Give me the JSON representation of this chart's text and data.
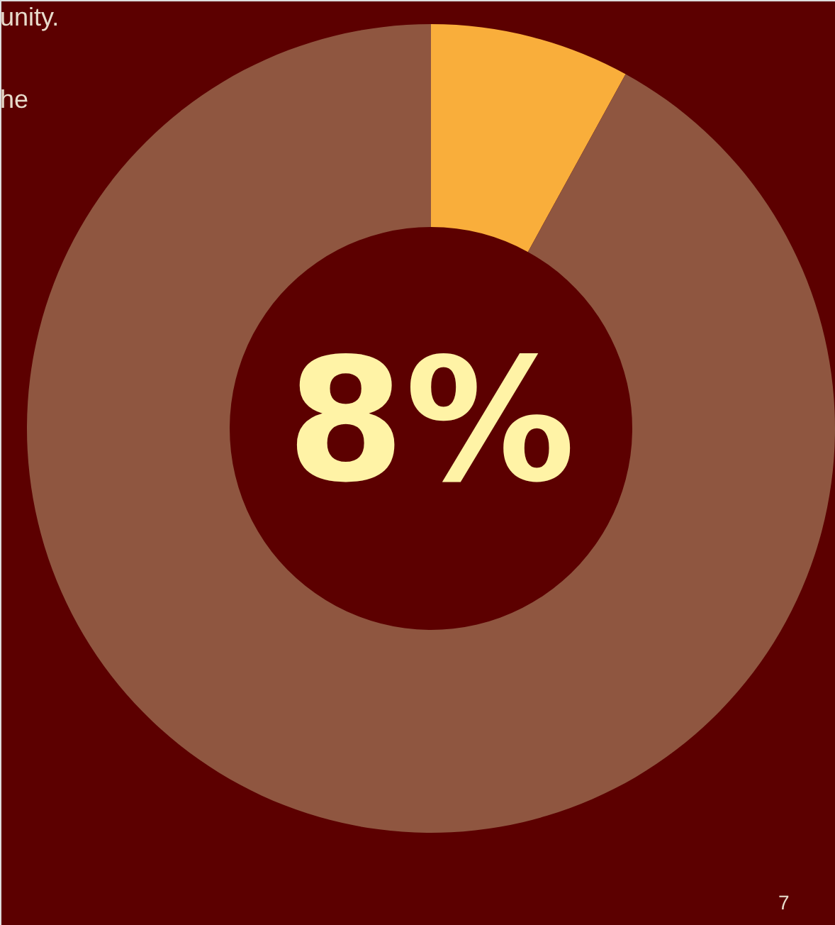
{
  "chart_data": {
    "type": "donut",
    "categories": [
      null,
      null
    ],
    "values": [
      8,
      92
    ],
    "colors": [
      "#f9ae3b",
      "#8f5640"
    ],
    "value_labels": [
      "8%",
      null
    ],
    "annotations": [
      "unity.",
      "he",
      "7"
    ]
  }
}
